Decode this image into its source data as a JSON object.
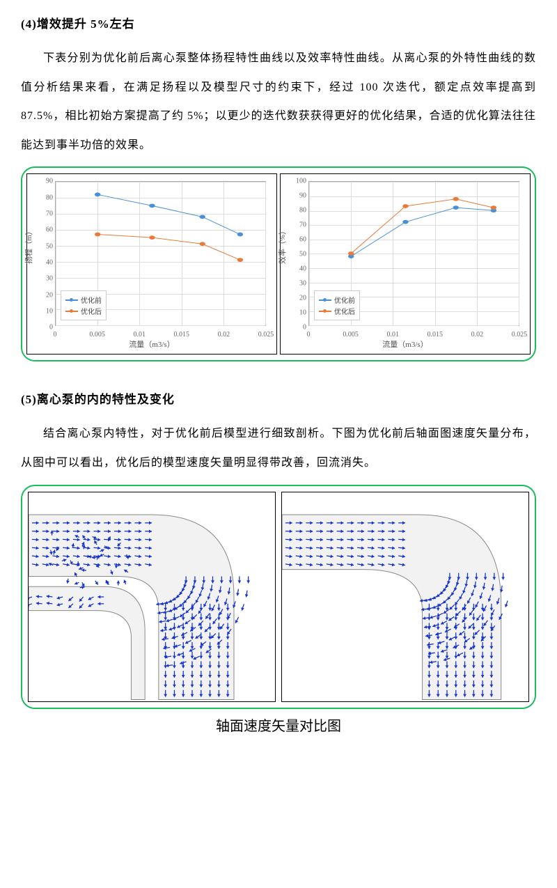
{
  "section4": {
    "heading": "(4)增效提升 5%左右",
    "para": "下表分别为优化前后离心泵整体扬程特性曲线以及效率特性曲线。从离心泵的外特性曲线的数值分析结果来看，在满足扬程以及模型尺寸的约束下，经过 100 次迭代，额定点效率提高到 87.5%，相比初始方案提高了约 5%；以更少的迭代数获获得更好的优化结果，合适的优化算法往往能达到事半功倍的效果。"
  },
  "section5": {
    "heading": "(5)离心泵的内的特性及变化",
    "para": "结合离心泵内特性，对于优化前后模型进行细致剖析。下图为优化前后轴面图速度矢量分布，从图中可以看出，优化后的模型速度矢量明显得带改善，回流消失。"
  },
  "chart1": {
    "type": "line",
    "ylabel": "扬程（m）",
    "xlabel": "流量（m3/s）",
    "ylim": [
      0,
      90
    ],
    "ytick_step": 10,
    "xlim": [
      0,
      0.025
    ],
    "xtick_step": 0.005,
    "grid_color": "#dddddd",
    "series": [
      {
        "name": "优化前",
        "color": "#4a90d9",
        "x": [
          0.005,
          0.0115,
          0.0175,
          0.022
        ],
        "y": [
          82,
          75,
          68,
          57
        ]
      },
      {
        "name": "优化后",
        "color": "#e87b3a",
        "x": [
          0.005,
          0.0115,
          0.0175,
          0.022
        ],
        "y": [
          57,
          55,
          51,
          41
        ]
      }
    ],
    "legend_pos": "bottom-left"
  },
  "chart2": {
    "type": "line",
    "ylabel": "效率（%）",
    "xlabel": "流量（m3/s）",
    "ylim": [
      0,
      100
    ],
    "ytick_step": 10,
    "xlim": [
      0,
      0.025
    ],
    "xtick_step": 0.005,
    "grid_color": "#dddddd",
    "series": [
      {
        "name": "优化前",
        "color": "#4a90d9",
        "x": [
          0.005,
          0.0115,
          0.0175,
          0.022
        ],
        "y": [
          48,
          72,
          82,
          80
        ]
      },
      {
        "name": "优化后",
        "color": "#e87b3a",
        "x": [
          0.005,
          0.0115,
          0.0175,
          0.022
        ],
        "y": [
          50,
          83,
          88,
          82
        ]
      }
    ],
    "legend_pos": "bottom-left"
  },
  "vector_caption": "轴面速度矢量对比图",
  "vector_color": "#1533cc",
  "vector_outline": "#888888",
  "legend_labels": {
    "before": "优化前",
    "after": "优化后"
  }
}
